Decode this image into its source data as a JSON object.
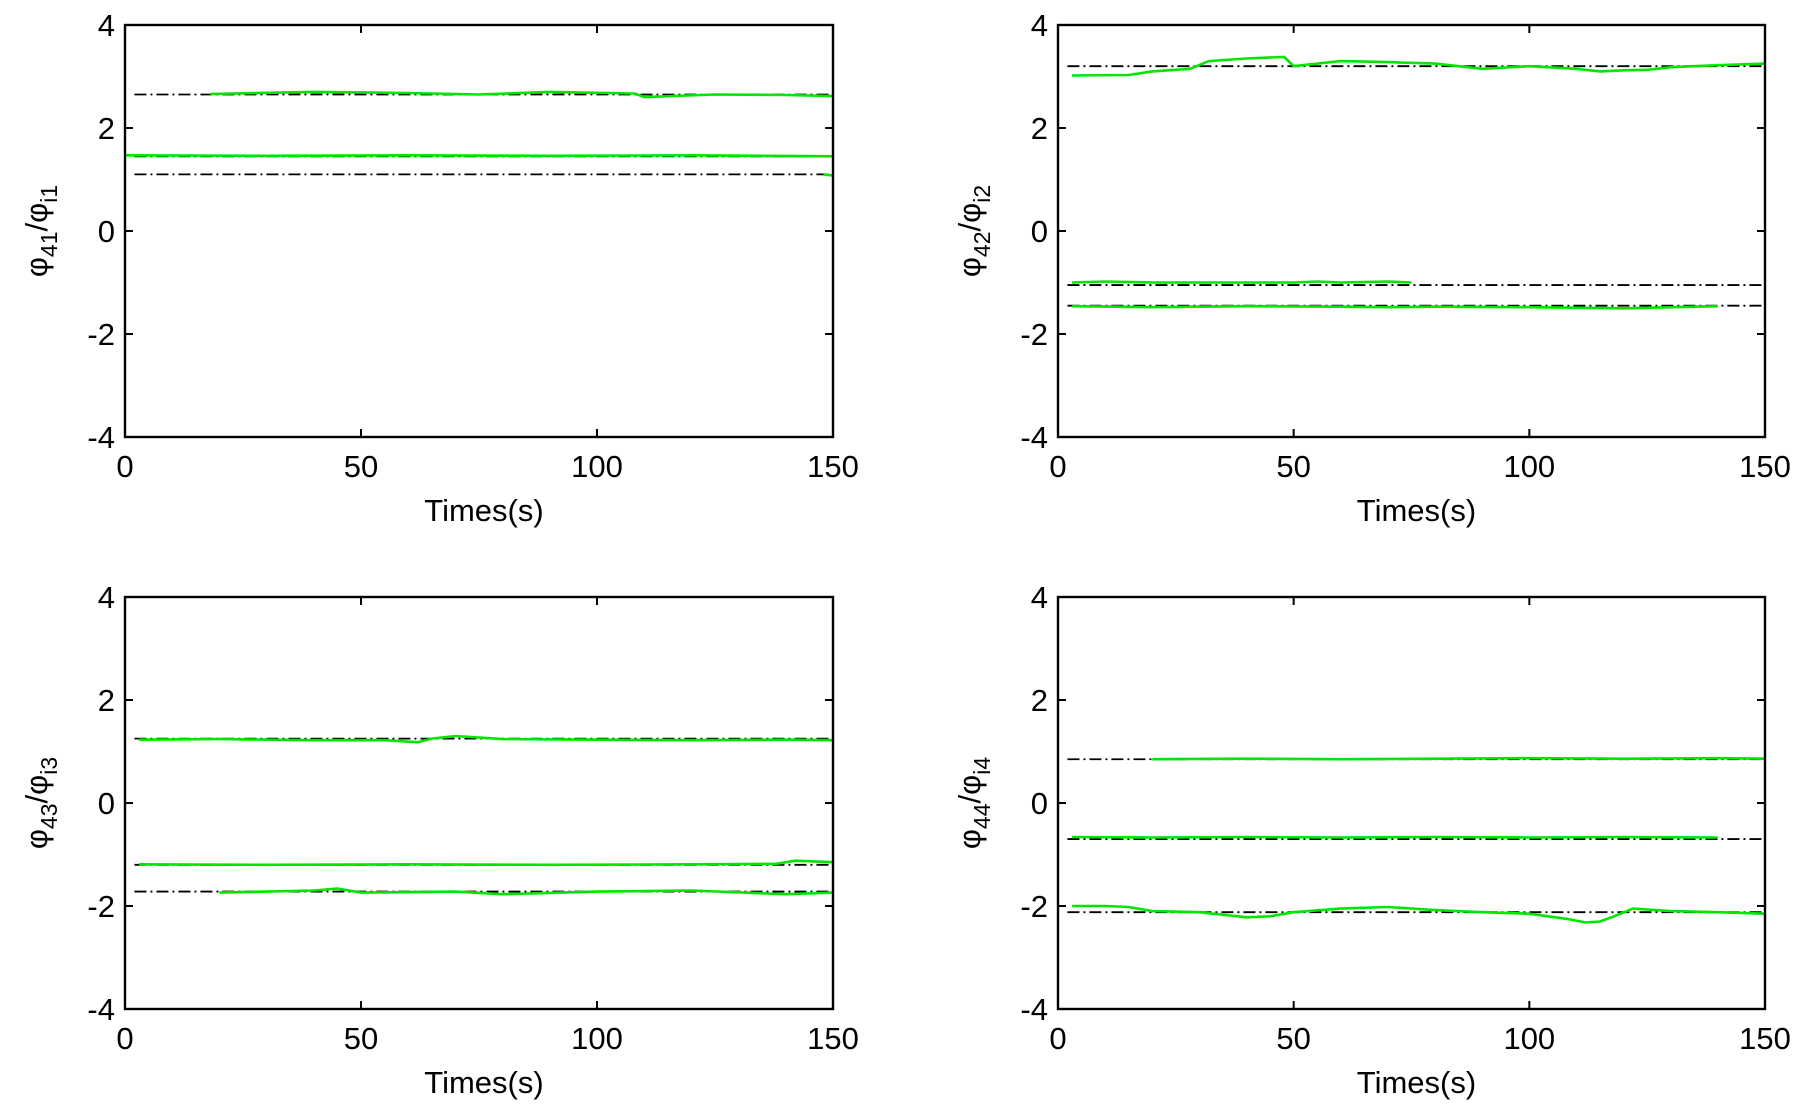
{
  "chart_data": [
    {
      "type": "line",
      "xlabel": "Times(s)",
      "ylabel": {
        "main": "φ",
        "sub1": "41",
        "slash": "/φ",
        "sub2": "i1"
      },
      "xlim": [
        0,
        150
      ],
      "ylim": [
        -4,
        4
      ],
      "xticks": [
        0,
        50,
        100,
        150
      ],
      "yticks": [
        -4,
        -2,
        0,
        2,
        4
      ],
      "grid": false,
      "series": [
        {
          "reference": 2.65,
          "x": [
            18,
            40,
            60,
            75,
            90,
            108,
            110,
            125,
            140,
            150
          ],
          "y": [
            2.66,
            2.7,
            2.68,
            2.65,
            2.7,
            2.67,
            2.6,
            2.65,
            2.64,
            2.62
          ]
        },
        {
          "reference": 1.45,
          "x": [
            0,
            30,
            60,
            90,
            120,
            150
          ],
          "y": [
            1.47,
            1.46,
            1.47,
            1.46,
            1.47,
            1.45
          ]
        },
        {
          "reference": 1.1,
          "x": [
            148,
            150
          ],
          "y": [
            1.1,
            1.08
          ]
        }
      ]
    },
    {
      "type": "line",
      "xlabel": "Times(s)",
      "ylabel": {
        "main": "φ",
        "sub1": "42",
        "slash": "/φ",
        "sub2": "i2"
      },
      "xlim": [
        0,
        150
      ],
      "ylim": [
        -4,
        4
      ],
      "xticks": [
        0,
        50,
        100,
        150
      ],
      "yticks": [
        -4,
        -2,
        0,
        2,
        4
      ],
      "grid": false,
      "series": [
        {
          "reference": 3.2,
          "x": [
            3,
            15,
            20,
            28,
            32,
            40,
            48,
            50,
            60,
            70,
            80,
            90,
            100,
            110,
            115,
            120,
            125,
            130,
            140,
            150
          ],
          "y": [
            3.02,
            3.03,
            3.1,
            3.15,
            3.3,
            3.35,
            3.38,
            3.2,
            3.3,
            3.28,
            3.25,
            3.15,
            3.2,
            3.15,
            3.1,
            3.12,
            3.13,
            3.18,
            3.22,
            3.25
          ]
        },
        {
          "reference": -1.05,
          "x": [
            3,
            10,
            20,
            30,
            50,
            55,
            60,
            70,
            75
          ],
          "y": [
            -1.0,
            -0.98,
            -1.0,
            -1.0,
            -1.0,
            -0.98,
            -1.0,
            -0.98,
            -1.0
          ]
        },
        {
          "reference": -1.45,
          "x": [
            3,
            20,
            40,
            60,
            70,
            80,
            100,
            120,
            140
          ],
          "y": [
            -1.46,
            -1.48,
            -1.46,
            -1.47,
            -1.48,
            -1.47,
            -1.48,
            -1.5,
            -1.46
          ]
        }
      ]
    },
    {
      "type": "line",
      "xlabel": "Times(s)",
      "ylabel": {
        "main": "φ",
        "sub1": "43",
        "slash": "/φ",
        "sub2": "i3"
      },
      "xlim": [
        0,
        150
      ],
      "ylim": [
        -4,
        4
      ],
      "xticks": [
        0,
        50,
        100,
        150
      ],
      "yticks": [
        -4,
        -2,
        0,
        2,
        4
      ],
      "grid": false,
      "series": [
        {
          "reference": 1.25,
          "x": [
            3,
            20,
            40,
            55,
            62,
            65,
            70,
            80,
            100,
            120,
            140,
            150
          ],
          "y": [
            1.23,
            1.24,
            1.22,
            1.22,
            1.18,
            1.25,
            1.3,
            1.24,
            1.23,
            1.22,
            1.23,
            1.22
          ]
        },
        {
          "reference": -1.2,
          "x": [
            3,
            30,
            60,
            90,
            120,
            138,
            142,
            150
          ],
          "y": [
            -1.19,
            -1.2,
            -1.19,
            -1.2,
            -1.19,
            -1.18,
            -1.12,
            -1.15
          ]
        },
        {
          "reference": -1.72,
          "x": [
            20,
            30,
            40,
            45,
            50,
            70,
            80,
            100,
            120,
            140,
            150
          ],
          "y": [
            -1.74,
            -1.72,
            -1.7,
            -1.66,
            -1.74,
            -1.72,
            -1.77,
            -1.72,
            -1.7,
            -1.77,
            -1.74
          ]
        }
      ]
    },
    {
      "type": "line",
      "xlabel": "Times(s)",
      "ylabel": {
        "main": "φ",
        "sub1": "44",
        "slash": "/φ",
        "sub2": "i4"
      },
      "xlim": [
        0,
        150
      ],
      "ylim": [
        -4,
        4
      ],
      "xticks": [
        0,
        50,
        100,
        150
      ],
      "yticks": [
        -4,
        -2,
        0,
        2,
        4
      ],
      "grid": false,
      "series": [
        {
          "reference": 0.85,
          "x": [
            20,
            40,
            60,
            80,
            100,
            120,
            140,
            150
          ],
          "y": [
            0.85,
            0.86,
            0.85,
            0.86,
            0.87,
            0.86,
            0.87,
            0.86
          ]
        },
        {
          "reference": -0.7,
          "x": [
            3,
            20,
            40,
            60,
            80,
            100,
            120,
            140
          ],
          "y": [
            -0.66,
            -0.67,
            -0.66,
            -0.67,
            -0.66,
            -0.67,
            -0.66,
            -0.67
          ]
        },
        {
          "reference": -2.12,
          "x": [
            3,
            10,
            15,
            20,
            30,
            40,
            45,
            50,
            60,
            70,
            80,
            90,
            100,
            108,
            112,
            115,
            118,
            122,
            130,
            140,
            150
          ],
          "y": [
            -2.0,
            -2.0,
            -2.02,
            -2.1,
            -2.12,
            -2.22,
            -2.2,
            -2.12,
            -2.05,
            -2.02,
            -2.08,
            -2.12,
            -2.15,
            -2.25,
            -2.32,
            -2.3,
            -2.2,
            -2.05,
            -2.1,
            -2.12,
            -2.15
          ]
        }
      ]
    }
  ]
}
